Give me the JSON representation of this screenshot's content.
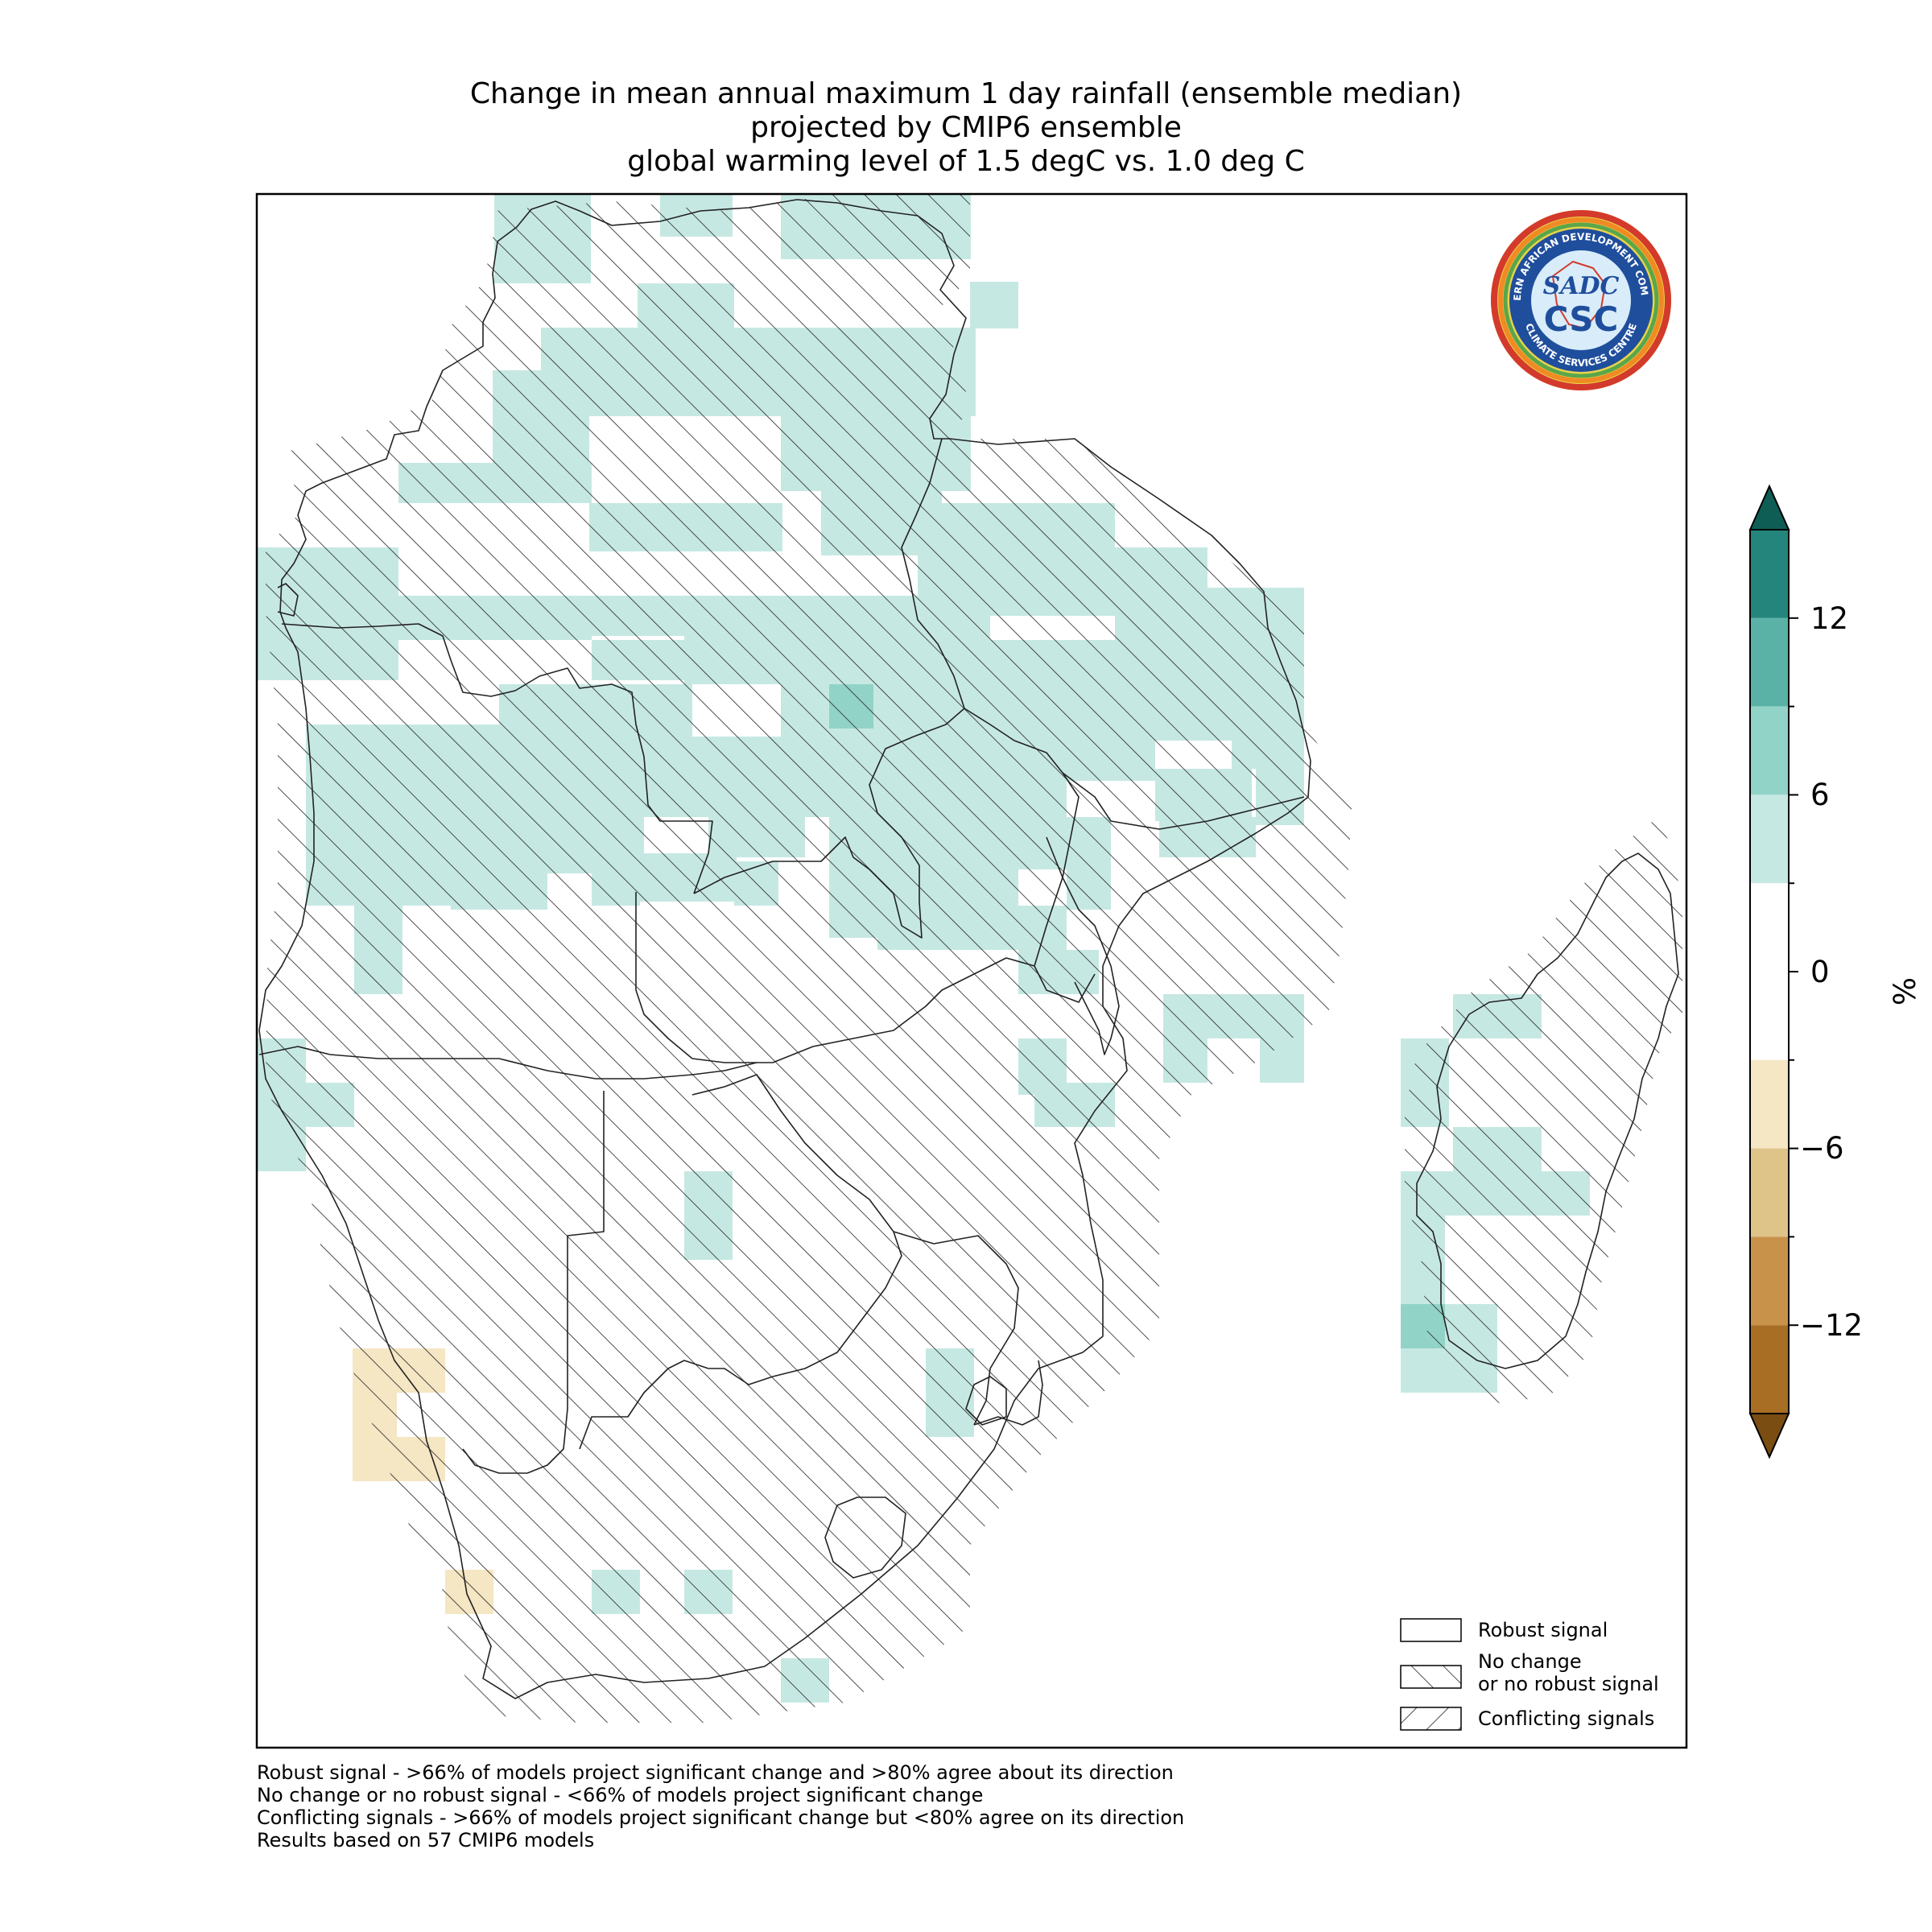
{
  "title": {
    "line1": "Change in mean annual maximum 1 day rainfall (ensemble median)",
    "line2": "projected by CMIP6 ensemble",
    "line3": "global warming level of 1.5 degC vs. 1.0 deg C"
  },
  "logo": {
    "org_name": "SOUTHERN AFRICAN DEVELOPMENT COMMUNITY",
    "centre_name": "CLIMATE SERVICES CENTRE",
    "monogram": "SADC",
    "abbrev": "CSC",
    "ring_color": "#d33a2c",
    "inner_color": "#1f4e9c"
  },
  "colorbar": {
    "unit": "%",
    "ticks": [
      "12",
      "6",
      "0",
      "−6",
      "−12"
    ],
    "levels": [
      15,
      12,
      9,
      6,
      3,
      -3,
      -6,
      -9,
      -12,
      -15
    ],
    "colors": {
      "above_max": "#0e5e56",
      "12_to_15": "#23857b",
      "9_to_12": "#5ab2a6",
      "6_to_9": "#92d3c7",
      "3_to_6": "#c6e8e3",
      "neutral": "#ffffff",
      "-6_to_-3": "#f5e6c4",
      "-9_to_-6": "#dfc48a",
      "-12_to_-9": "#c8924b",
      "-15_to_-12": "#a86e24",
      "below_min": "#7a4d13"
    }
  },
  "legend": {
    "robust": "Robust signal",
    "no_change_line1": "No change",
    "no_change_line2": "or no robust signal",
    "conflicting": "Conflicting signals"
  },
  "footnotes": {
    "line1": "Robust signal - >66% of models project significant change and >80% agree about its direction",
    "line2": "No change or no robust signal - <66% of models project significant change",
    "line3": "Conflicting signals - >66% of models project significant change but <80% agree on its direction",
    "line4": "Results based on 57 CMIP6 models"
  }
}
